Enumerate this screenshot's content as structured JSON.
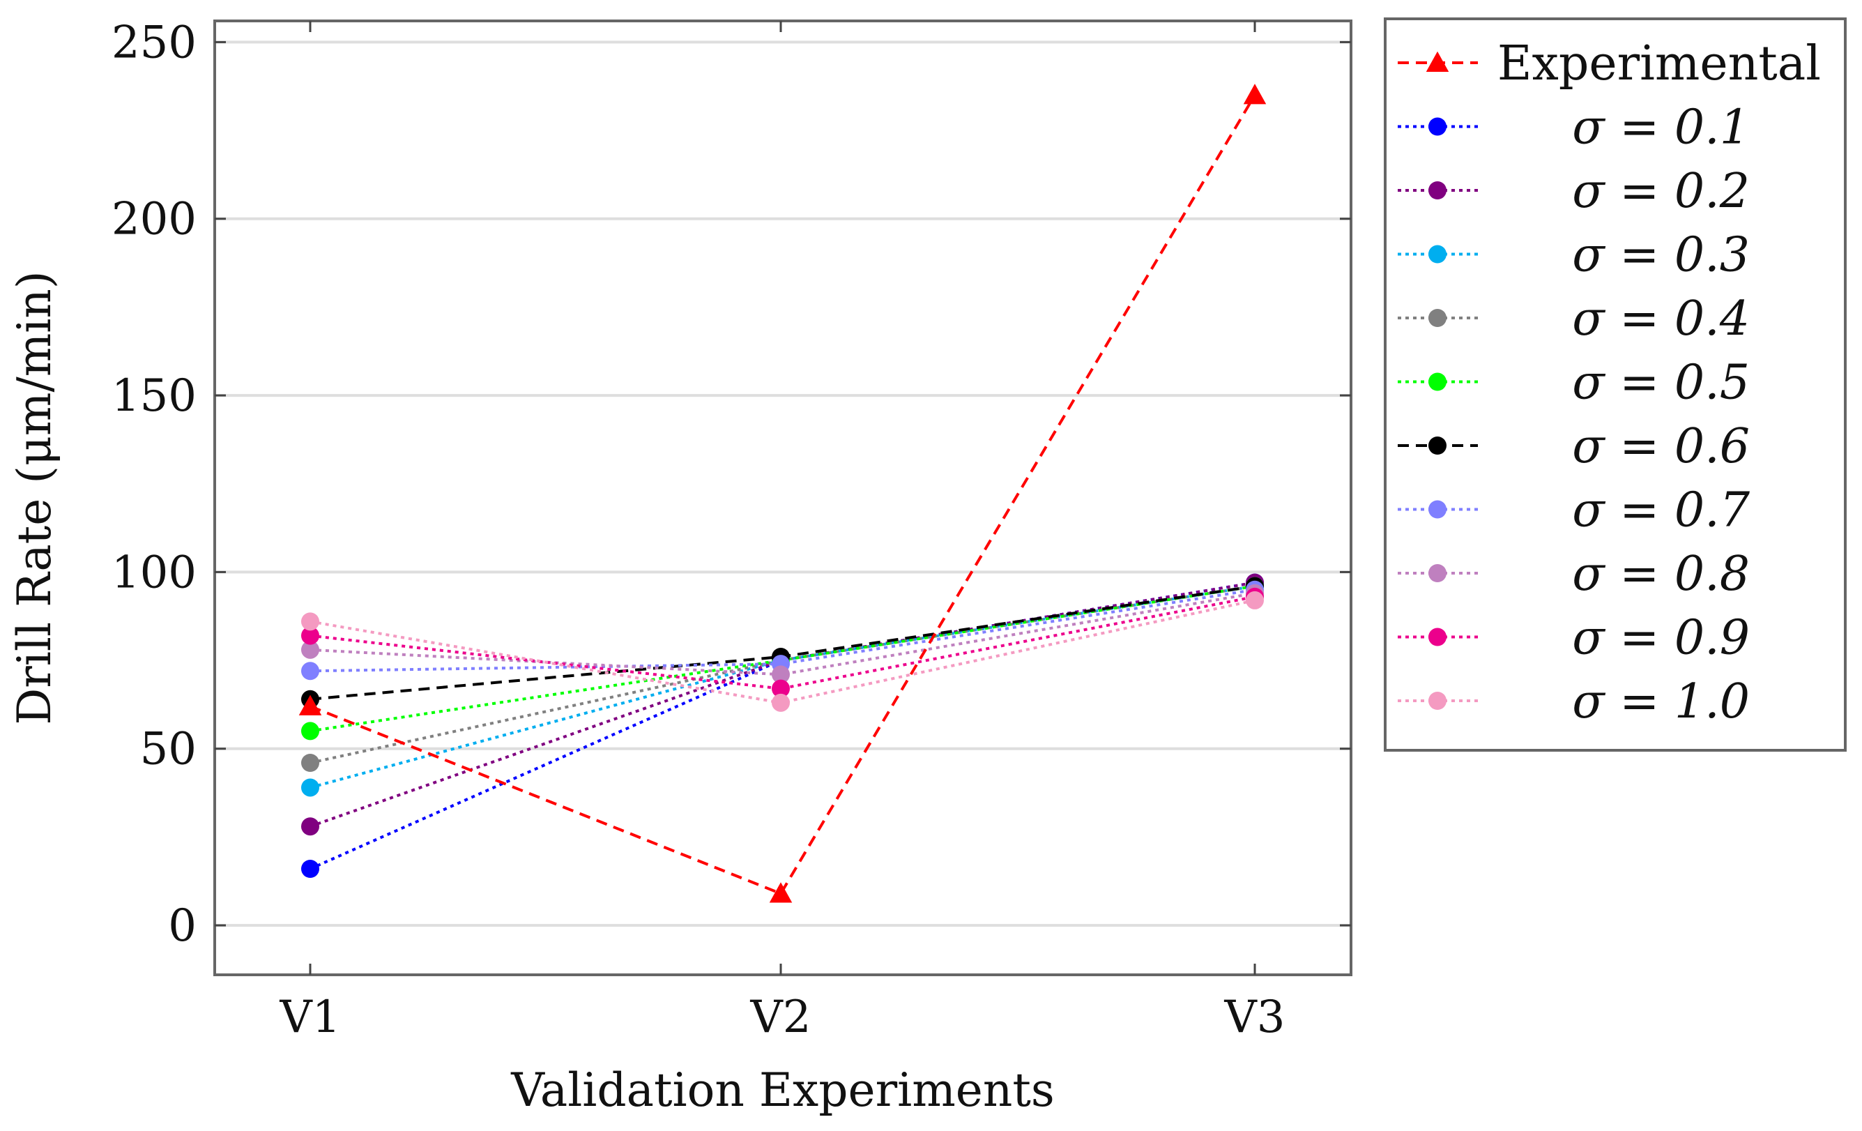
{
  "chart_data": {
    "type": "line",
    "title": "",
    "xlabel": "Validation Experiments",
    "ylabel": "Drill Rate (μm/min)",
    "categories": [
      "V1",
      "V2",
      "V3"
    ],
    "ylim": [
      -14,
      256
    ],
    "yticks": [
      0,
      50,
      100,
      150,
      200,
      250
    ],
    "grid": "horizontal",
    "legend_position": "outside-right-top",
    "series": [
      {
        "name": "Experimental",
        "values": [
          62,
          9,
          235
        ],
        "color": "#ff0000",
        "dash": "dashed",
        "marker": "triangle",
        "width": 4
      },
      {
        "name": "σ = 0.1",
        "values": [
          16,
          75,
          97
        ],
        "color": "#0000ff",
        "dash": "dotted",
        "marker": "circle",
        "width": 4
      },
      {
        "name": "σ = 0.2",
        "values": [
          28,
          75,
          97
        ],
        "color": "#800080",
        "dash": "dotted",
        "marker": "circle",
        "width": 4
      },
      {
        "name": "σ = 0.3",
        "values": [
          39,
          75,
          96
        ],
        "color": "#00aeef",
        "dash": "dotted",
        "marker": "circle",
        "width": 4
      },
      {
        "name": "σ = 0.4",
        "values": [
          46,
          75,
          96
        ],
        "color": "#808080",
        "dash": "dotted",
        "marker": "circle",
        "width": 4
      },
      {
        "name": "σ = 0.5",
        "values": [
          55,
          75,
          96
        ],
        "color": "#00ff00",
        "dash": "dotted",
        "marker": "circle",
        "width": 4
      },
      {
        "name": "σ = 0.6",
        "values": [
          64,
          76,
          96
        ],
        "color": "#000000",
        "dash": "dashed",
        "marker": "circle",
        "width": 4
      },
      {
        "name": "σ = 0.7",
        "values": [
          72,
          74,
          95
        ],
        "color": "#7f7fff",
        "dash": "dotted",
        "marker": "circle",
        "width": 4
      },
      {
        "name": "σ = 0.8",
        "values": [
          78,
          71,
          94
        ],
        "color": "#bf80bf",
        "dash": "dotted",
        "marker": "circle",
        "width": 4
      },
      {
        "name": "σ = 0.9",
        "values": [
          82,
          67,
          93
        ],
        "color": "#ec008c",
        "dash": "dotted",
        "marker": "circle",
        "width": 4
      },
      {
        "name": "σ = 1.0",
        "values": [
          86,
          63,
          92
        ],
        "color": "#f49ac1",
        "dash": "dotted",
        "marker": "circle",
        "width": 4
      }
    ]
  }
}
